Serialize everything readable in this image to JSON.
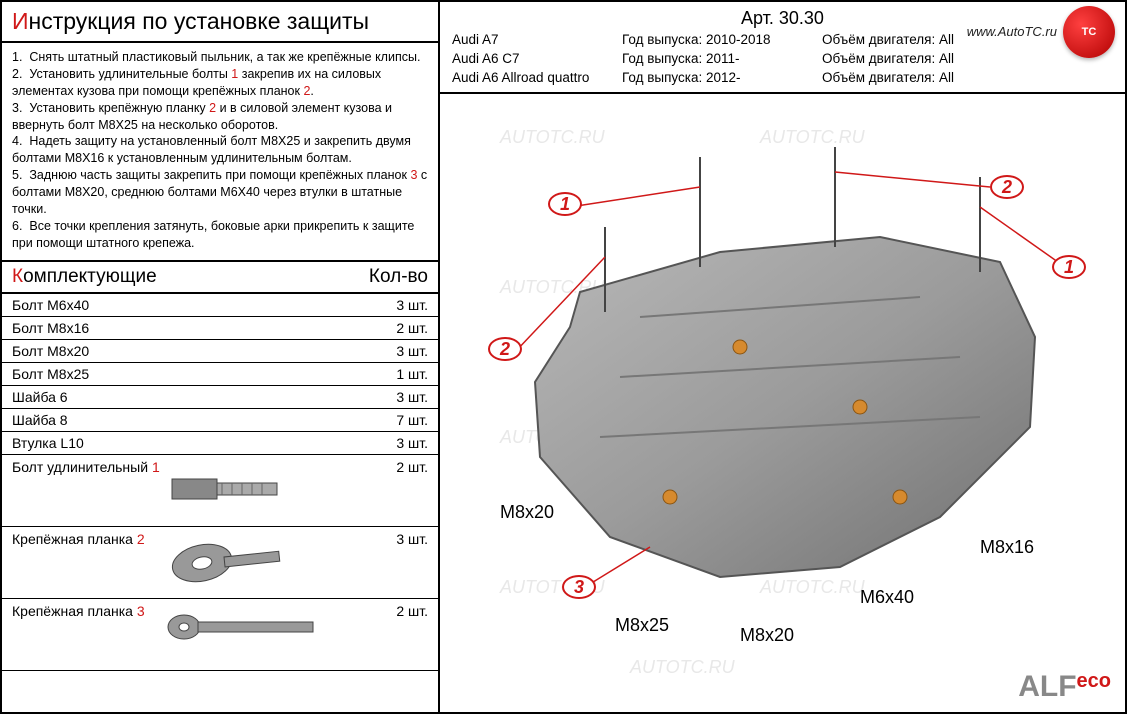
{
  "title_prefix": "И",
  "title_rest": "нструкция по установке защиты",
  "instructions": [
    {
      "n": "1.",
      "text": "Снять штатный пластиковый пыльник, а так же крепёжные клипсы."
    },
    {
      "n": "2.",
      "text": "Установить удлинительные болты ",
      "red": "1",
      "text2": " закрепив их на силовых элементах кузова при помощи крепёжных планок ",
      "red2": "2",
      "text3": "."
    },
    {
      "n": "3.",
      "text": "Установить крепёжную планку ",
      "red": "2",
      "text2": " и в силовой элемент кузова и ввернуть болт М8Х25 на несколько оборотов."
    },
    {
      "n": "4.",
      "text": "Надеть защиту на установленный болт М8Х25 и закрепить двумя болтами М8Х16 к установленным удлинительным болтам."
    },
    {
      "n": "5.",
      "text": "Заднюю часть защиты закрепить при помощи крепёжных планок ",
      "red": "3",
      "text2": " с болтами М8Х20, среднюю болтами М6Х40 через втулки в штатные точки."
    },
    {
      "n": "6.",
      "text": "Все точки крепления затянуть, боковые арки прикрепить к защите при помощи штатного крепежа."
    }
  ],
  "parts_header_left_prefix": "К",
  "parts_header_left_rest": "омплектующие",
  "parts_header_right": "Кол-во",
  "parts": [
    {
      "name": "Болт М6х40",
      "qty": "3 шт."
    },
    {
      "name": "Болт М8х16",
      "qty": "2 шт."
    },
    {
      "name": "Болт М8х20",
      "qty": "3 шт."
    },
    {
      "name": "Болт М8х25",
      "qty": "1 шт."
    },
    {
      "name": "Шайба 6",
      "qty": "3 шт."
    },
    {
      "name": "Шайба 8",
      "qty": "7 шт."
    },
    {
      "name": "Втулка L10",
      "qty": "3 шт."
    }
  ],
  "illus_parts": [
    {
      "name": "Болт удлинительный ",
      "red": "1",
      "qty": "2 шт."
    },
    {
      "name": "Крепёжная планка ",
      "red": "2",
      "qty": "3 шт."
    },
    {
      "name": "Крепёжная планка ",
      "red": "3",
      "qty": "2 шт."
    }
  ],
  "art_label": "Арт. 30.30",
  "vehicles": [
    {
      "model": "Audi A7",
      "year_label": "Год выпуска:",
      "year": "2010-2018",
      "engine_label": "Объём двигателя:",
      "engine": "All"
    },
    {
      "model": "Audi A6 C7",
      "year_label": "Год выпуска:",
      "year": "2011-",
      "engine_label": "Объём двигателя:",
      "engine": "All"
    },
    {
      "model": "Audi A6 Allroad quattro",
      "year_label": "Год выпуска:",
      "year": "2012-",
      "engine_label": "Объём двигателя:",
      "engine": "All"
    }
  ],
  "website": "www.AutoTC.ru",
  "logo_text": "ТС",
  "brand": "ALF",
  "brand_suffix": "eco",
  "watermark_text": "AUTOTC.RU",
  "diagram_labels": {
    "m8x20_left": "M8x20",
    "m8x25": "M8x25",
    "m8x20_mid": "M8x20",
    "m6x40": "M6x40",
    "m8x16": "M8x16"
  },
  "callouts": [
    "1",
    "2",
    "1",
    "2",
    "3"
  ],
  "colors": {
    "accent": "#d01818",
    "border": "#000000",
    "text": "#000000",
    "watermark": "#e8e8e8",
    "plate_fill": "#9b9b9b",
    "plate_stroke": "#555555",
    "bolt_dot": "#d68a2e"
  }
}
